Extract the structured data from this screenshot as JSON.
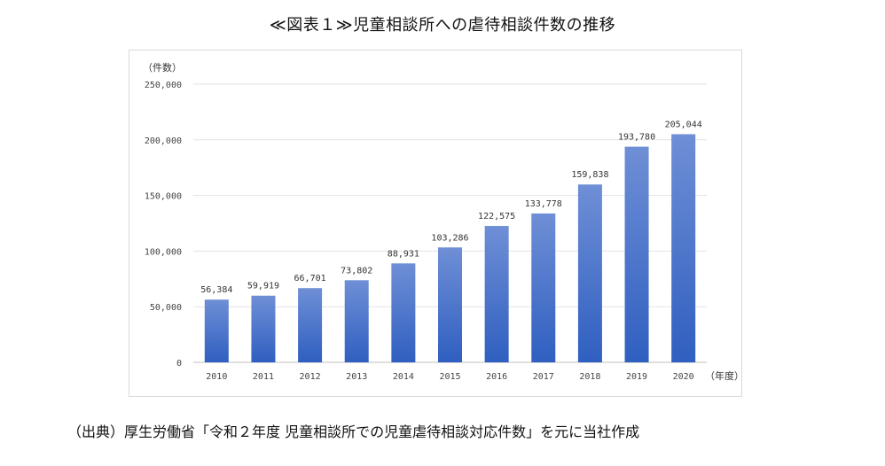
{
  "title": "≪図表１≫児童相談所への虐待相談件数の推移",
  "source": "（出典）厚生労働省「令和２年度 児童相談所での児童虐待相談対応件数」を元に当社作成",
  "chart_data": {
    "type": "bar",
    "categories": [
      "2010",
      "2011",
      "2012",
      "2013",
      "2014",
      "2015",
      "2016",
      "2017",
      "2018",
      "2019",
      "2020"
    ],
    "values": [
      56384,
      59919,
      66701,
      73802,
      88931,
      103286,
      122575,
      133778,
      159838,
      193780,
      205044
    ],
    "data_labels": [
      "56,384",
      "59,919",
      "66,701",
      "73,802",
      "88,931",
      "103,286",
      "122,575",
      "133,778",
      "159,838",
      "193,780",
      "205,044"
    ],
    "y_ticks": [
      0,
      50000,
      100000,
      150000,
      200000,
      250000
    ],
    "y_tick_labels": [
      "0",
      "50,000",
      "100,000",
      "150,000",
      "200,000",
      "250,000"
    ],
    "ylim": [
      0,
      250000
    ],
    "y_unit": "（件数）",
    "x_unit": "（年度）",
    "grid": true,
    "legend": "none",
    "bar_color_top": "#6f8fd6",
    "bar_color_bottom": "#2f5fc0"
  }
}
